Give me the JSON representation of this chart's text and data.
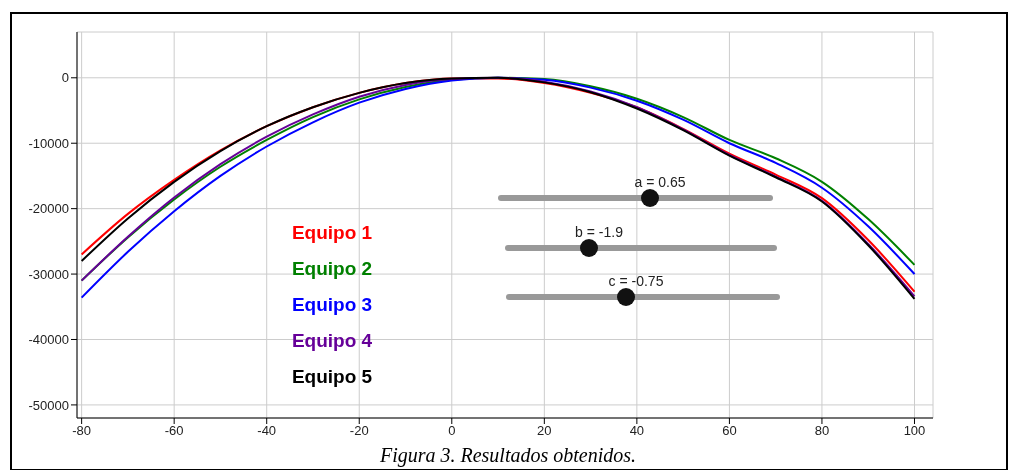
{
  "chart_data": {
    "type": "line",
    "x": [
      -80,
      -70,
      -60,
      -50,
      -40,
      -30,
      -20,
      -10,
      0,
      10,
      20,
      30,
      40,
      50,
      60,
      70,
      80,
      90,
      100
    ],
    "series": [
      {
        "name": "Equipo 1",
        "color": "#ff0000",
        "values": [
          -27000,
          -20800,
          -15600,
          -11100,
          -7400,
          -4500,
          -2300,
          -800,
          -100,
          -100,
          -800,
          -2300,
          -4500,
          -7800,
          -11600,
          -14800,
          -18400,
          -24800,
          -32700
        ]
      },
      {
        "name": "Equipo 2",
        "color": "#008000",
        "values": [
          -31000,
          -24400,
          -18600,
          -13600,
          -9500,
          -6000,
          -3300,
          -1400,
          -300,
          0,
          -200,
          -1300,
          -3200,
          -6000,
          -9500,
          -12300,
          -15900,
          -21600,
          -28600
        ]
      },
      {
        "name": "Equipo 3",
        "color": "#0000ff",
        "values": [
          -33600,
          -26600,
          -20400,
          -15000,
          -10500,
          -6800,
          -3800,
          -1700,
          -400,
          0,
          -300,
          -1500,
          -3500,
          -6400,
          -10000,
          -13000,
          -16800,
          -22700,
          -30000
        ]
      },
      {
        "name": "Equipo 4",
        "color": "#660099",
        "values": [
          -31000,
          -24300,
          -18300,
          -13200,
          -9000,
          -5600,
          -2900,
          -1100,
          -200,
          0,
          -600,
          -2100,
          -4500,
          -7900,
          -11800,
          -15100,
          -18800,
          -25400,
          -33400
        ]
      },
      {
        "name": "Equipo 5",
        "color": "#000000",
        "values": [
          -28000,
          -21500,
          -15900,
          -11200,
          -7400,
          -4500,
          -2300,
          -800,
          -100,
          0,
          -700,
          -2200,
          -4700,
          -8000,
          -11900,
          -15200,
          -18900,
          -25600,
          -33800
        ]
      }
    ],
    "xlim": [
      -81,
      104
    ],
    "xticks": [
      -80,
      -60,
      -40,
      -20,
      0,
      20,
      40,
      60,
      80,
      100
    ],
    "ylim": [
      -52000,
      7000
    ],
    "yticks": [
      -50000,
      -40000,
      -30000,
      -20000,
      -10000,
      0
    ],
    "grid": true,
    "legend": "left",
    "marker": "none",
    "line_style": "solid",
    "annotations": [
      "a = 0.65",
      "b = -1.9",
      "c = -0.75",
      "Figura 3. Resultados obtenidos."
    ]
  }
}
